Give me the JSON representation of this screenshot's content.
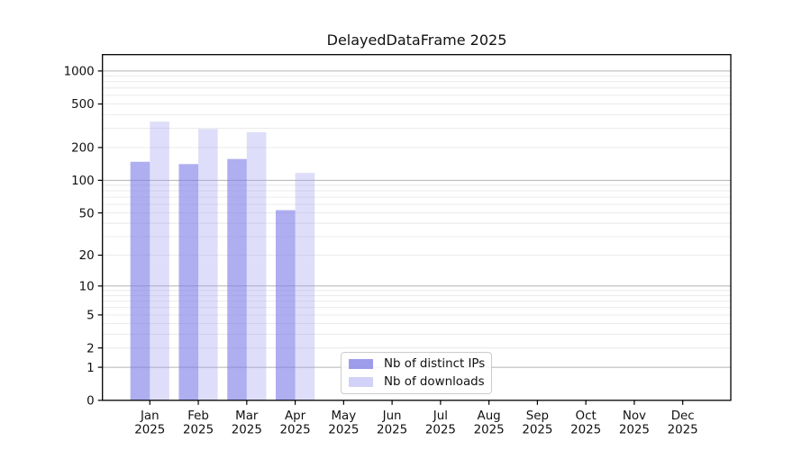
{
  "chart_data": {
    "type": "bar",
    "title": "DelayedDataFrame 2025",
    "categories": [
      "Jan",
      "Feb",
      "Mar",
      "Apr",
      "May",
      "Jun",
      "Jul",
      "Aug",
      "Sep",
      "Oct",
      "Nov",
      "Dec"
    ],
    "xtick_year": "2025",
    "series": [
      {
        "name": "Nb of distinct IPs",
        "color": "#7c7ce6",
        "opacity": 0.62,
        "values": [
          148,
          141,
          157,
          53,
          null,
          null,
          null,
          null,
          null,
          null,
          null,
          null
        ]
      },
      {
        "name": "Nb of downloads",
        "color": "#a0a0f0",
        "opacity": 0.35,
        "values": [
          345,
          296,
          276,
          117,
          null,
          null,
          null,
          null,
          null,
          null,
          null,
          null
        ]
      }
    ],
    "yscale": "log1p",
    "yticks": [
      0,
      1,
      2,
      5,
      10,
      20,
      50,
      100,
      200,
      500,
      1000
    ],
    "ylim": [
      0,
      1410
    ],
    "grid": {
      "major_color": "#b3b3b3",
      "minor_color": "#e8e8e8",
      "major_at": [
        1,
        10,
        100,
        1000
      ]
    },
    "legend": {
      "location": "lower center"
    }
  }
}
